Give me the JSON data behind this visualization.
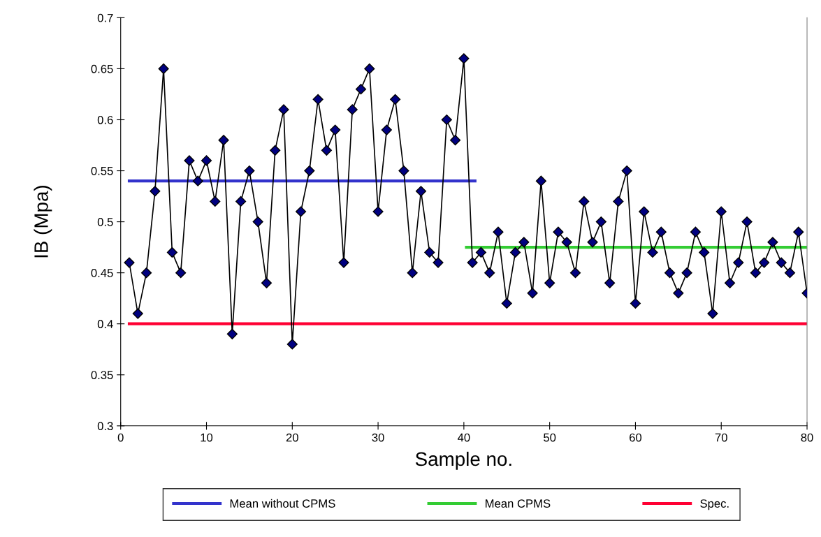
{
  "chart_data": {
    "type": "line",
    "xlabel": "Sample no.",
    "ylabel": "IB (Mpa)",
    "xlim": [
      0,
      80
    ],
    "xticks": [
      0,
      10,
      20,
      30,
      40,
      50,
      60,
      70,
      80
    ],
    "ylim": [
      0.3,
      0.7
    ],
    "yticks": [
      0.3,
      0.35,
      0.4,
      0.45,
      0.5,
      0.55,
      0.6,
      0.65,
      0.7
    ],
    "grid": false,
    "legend": "bottom",
    "marker": "diamond",
    "line_style": "solid",
    "series": [
      {
        "color": "#000080",
        "x": [
          1,
          2,
          3,
          4,
          5,
          6,
          7,
          8,
          9,
          10,
          11,
          12,
          13,
          14,
          15,
          16,
          17,
          18,
          19,
          20,
          21,
          22,
          23,
          24,
          25,
          26,
          27,
          28,
          29,
          30,
          31,
          32,
          33,
          34,
          35,
          36,
          37,
          38,
          39,
          40,
          41,
          42,
          43,
          44,
          45,
          46,
          47,
          48,
          49,
          50,
          51,
          52,
          53,
          54,
          55,
          56,
          57,
          58,
          59,
          60,
          61,
          62,
          63,
          64,
          65,
          66,
          67,
          68,
          69,
          70,
          71,
          72,
          73,
          74,
          75,
          76,
          77,
          78,
          79,
          80
        ],
        "values": [
          0.46,
          0.41,
          0.45,
          0.53,
          0.65,
          0.47,
          0.45,
          0.56,
          0.54,
          0.56,
          0.52,
          0.58,
          0.39,
          0.52,
          0.55,
          0.5,
          0.44,
          0.57,
          0.61,
          0.38,
          0.51,
          0.55,
          0.62,
          0.57,
          0.59,
          0.46,
          0.61,
          0.63,
          0.65,
          0.51,
          0.59,
          0.62,
          0.55,
          0.45,
          0.53,
          0.47,
          0.46,
          0.6,
          0.58,
          0.66,
          0.46,
          0.47,
          0.45,
          0.49,
          0.42,
          0.47,
          0.48,
          0.43,
          0.54,
          0.44,
          0.49,
          0.48,
          0.45,
          0.52,
          0.48,
          0.5,
          0.44,
          0.52,
          0.55,
          0.42,
          0.51,
          0.47,
          0.49,
          0.45,
          0.43,
          0.45,
          0.49,
          0.47,
          0.41,
          0.51,
          0.44,
          0.46,
          0.5,
          0.45,
          0.46,
          0.48,
          0.46,
          0.45,
          0.49,
          0.43
        ]
      },
      {
        "name": "Mean without CPMS",
        "color": "#3333cc",
        "x": [
          1,
          41.3
        ],
        "values": [
          0.54,
          0.54
        ],
        "marker": "none"
      },
      {
        "name": "Mean CPMS",
        "color": "#33cc33",
        "x": [
          40.3,
          80
        ],
        "values": [
          0.475,
          0.475
        ],
        "marker": "none"
      },
      {
        "name": "Spec.",
        "color": "#ff0033",
        "x": [
          1,
          80
        ],
        "values": [
          0.4,
          0.4
        ],
        "marker": "none"
      }
    ]
  }
}
